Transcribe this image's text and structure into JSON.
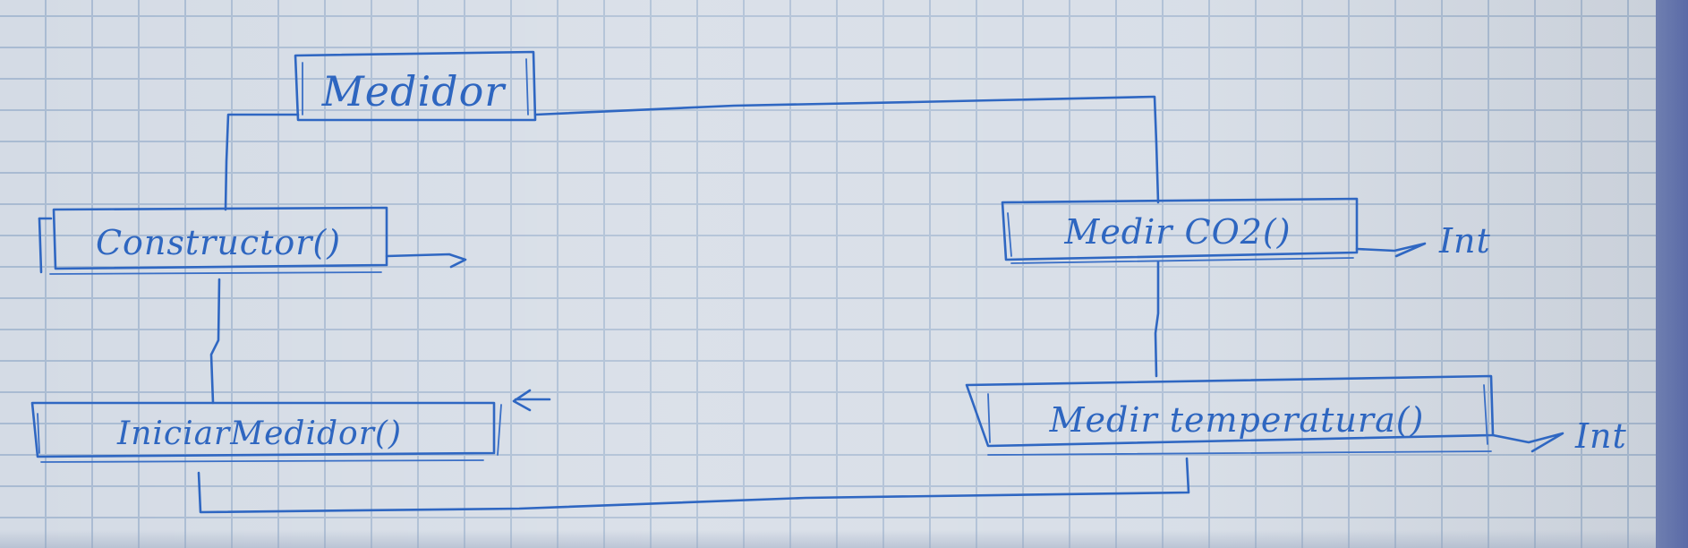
{
  "diagram": {
    "root": {
      "label": "Medidor"
    },
    "methods": [
      {
        "id": "constructor",
        "label": "Constructor()",
        "return_label": ""
      },
      {
        "id": "medir-co2",
        "label": "Medir CO2()",
        "return_label": "Int"
      },
      {
        "id": "iniciar-medidor",
        "label": "IniciarMedidor()",
        "return_label": ""
      },
      {
        "id": "medir-temperatura",
        "label": "Medir temperatura()",
        "return_label": "Int"
      }
    ]
  }
}
